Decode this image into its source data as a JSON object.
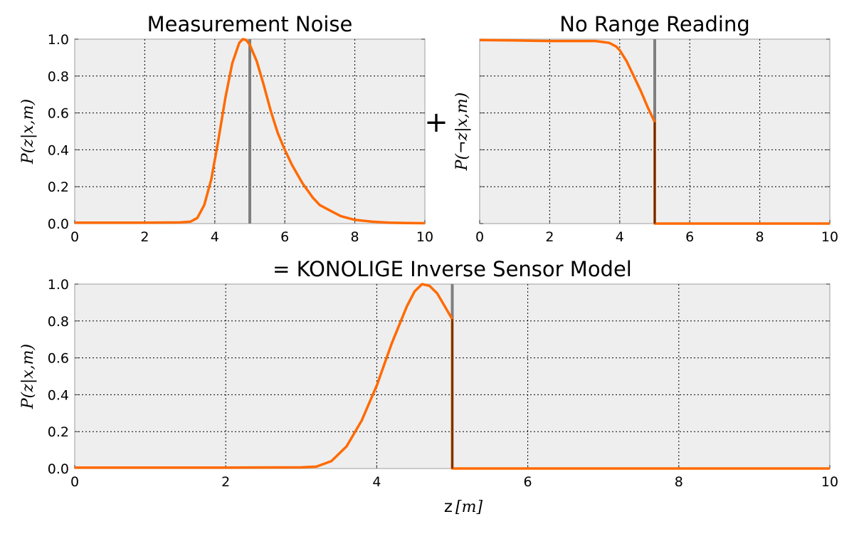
{
  "figure": {
    "operator_plus": "+",
    "xlabel_main": "z",
    "xlabel_unit": "[m]"
  },
  "chart_data": [
    {
      "id": "noise",
      "type": "line",
      "title": "Measurement Noise",
      "ylabel": "P(z|x,m)",
      "xlabel": "",
      "xlim": [
        0,
        10
      ],
      "ylim": [
        0,
        1
      ],
      "x_ticks": [
        0,
        2,
        4,
        6,
        8,
        10
      ],
      "x_tick_labels": [
        "0",
        "2",
        "4",
        "6",
        "8",
        "10"
      ],
      "y_ticks": [
        0,
        0.2,
        0.4,
        0.6,
        0.8,
        1.0
      ],
      "y_tick_labels": [
        "0.0",
        "0.2",
        "0.4",
        "0.6",
        "0.8",
        "1.0"
      ],
      "grid": true,
      "reference_line_x": 5.0,
      "series": [
        {
          "color": "#ff6a00",
          "x": [
            0,
            1,
            2,
            3,
            3.3,
            3.5,
            3.7,
            3.9,
            4.1,
            4.3,
            4.5,
            4.7,
            4.8,
            4.9,
            5.0,
            5.2,
            5.4,
            5.6,
            5.8,
            6.0,
            6.2,
            6.5,
            6.8,
            7.0,
            7.3,
            7.6,
            8.0,
            8.5,
            9.0,
            9.5,
            10
          ],
          "y": [
            0.005,
            0.005,
            0.005,
            0.006,
            0.01,
            0.03,
            0.1,
            0.24,
            0.45,
            0.68,
            0.87,
            0.98,
            1.0,
            0.995,
            0.97,
            0.88,
            0.75,
            0.61,
            0.49,
            0.4,
            0.32,
            0.22,
            0.14,
            0.1,
            0.07,
            0.04,
            0.02,
            0.01,
            0.005,
            0.003,
            0.002
          ]
        }
      ]
    },
    {
      "id": "norange",
      "type": "line",
      "title": "No Range Reading",
      "ylabel": "P(¬z|x,m)",
      "xlabel": "",
      "xlim": [
        0,
        10
      ],
      "ylim": [
        0,
        1
      ],
      "x_ticks": [
        0,
        2,
        4,
        6,
        8,
        10
      ],
      "x_tick_labels": [
        "0",
        "2",
        "4",
        "6",
        "8",
        "10"
      ],
      "y_ticks": [
        0,
        0.2,
        0.4,
        0.6,
        0.8,
        1.0
      ],
      "y_tick_labels": [],
      "grid": true,
      "reference_line_x": 5.0,
      "series": [
        {
          "color": "#ff6a00",
          "x": [
            0,
            1,
            2,
            3,
            3.3,
            3.5,
            3.7,
            3.8,
            3.9,
            4.0,
            4.2,
            4.4,
            4.6,
            4.8,
            5.0,
            5.0,
            5.05,
            6,
            7,
            8,
            9,
            10
          ],
          "y": [
            0.995,
            0.993,
            0.99,
            0.99,
            0.99,
            0.985,
            0.98,
            0.97,
            0.96,
            0.94,
            0.88,
            0.8,
            0.72,
            0.63,
            0.55,
            0.0,
            0.0,
            0.0,
            0.0,
            0.0,
            0.0,
            0.0
          ]
        }
      ]
    },
    {
      "id": "konolige",
      "type": "line",
      "title": "= KONOLIGE Inverse Sensor Model",
      "ylabel": "P(z|x,m)",
      "xlabel": "z [m]",
      "xlim": [
        0,
        10
      ],
      "ylim": [
        0,
        1
      ],
      "x_ticks": [
        0,
        2,
        4,
        6,
        8,
        10
      ],
      "x_tick_labels": [
        "0",
        "2",
        "4",
        "6",
        "8",
        "10"
      ],
      "y_ticks": [
        0,
        0.2,
        0.4,
        0.6,
        0.8,
        1.0
      ],
      "y_tick_labels": [
        "0.0",
        "0.2",
        "0.4",
        "0.6",
        "0.8",
        "1.0"
      ],
      "grid": true,
      "reference_line_x": 5.0,
      "series": [
        {
          "color": "#ff6a00",
          "x": [
            0,
            1,
            2,
            3,
            3.2,
            3.4,
            3.6,
            3.8,
            4.0,
            4.2,
            4.4,
            4.5,
            4.6,
            4.7,
            4.8,
            4.9,
            5.0,
            5.0,
            5.05,
            6,
            7,
            8,
            9,
            10
          ],
          "y": [
            0.005,
            0.005,
            0.005,
            0.006,
            0.01,
            0.04,
            0.12,
            0.26,
            0.45,
            0.68,
            0.88,
            0.96,
            1.0,
            0.99,
            0.95,
            0.88,
            0.81,
            0.0,
            0.0,
            0.0,
            0.0,
            0.0,
            0.0,
            0.0
          ]
        }
      ]
    }
  ]
}
